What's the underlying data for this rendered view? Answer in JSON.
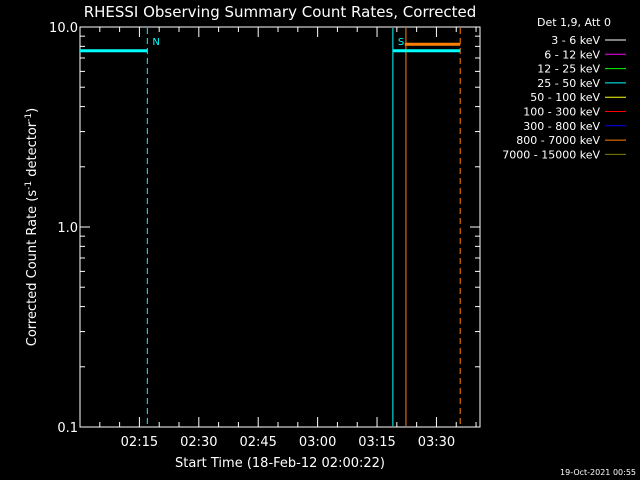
{
  "chart_data": {
    "type": "line",
    "title": "RHESSI Observing Summary Count Rates, Corrected",
    "xlabel": "Start Time (18-Feb-12 02:00:22)",
    "ylabel_main": "Corrected Count Rate (s",
    "ylabel_sup1": "-1",
    "ylabel_mid": " detector",
    "ylabel_sup2": "-1",
    "ylabel_end": ")",
    "y_scale": "log",
    "ylim": [
      0.1,
      10.0
    ],
    "y_ticks": [
      {
        "value": 0.1,
        "label": "0.1"
      },
      {
        "value": 1.0,
        "label": "1.0"
      },
      {
        "value": 10.0,
        "label": "10.0"
      }
    ],
    "x_unit": "minutes since 02:00:22",
    "xlim": [
      0,
      101
    ],
    "x_ticks": [
      {
        "value": 15,
        "label": "02:15"
      },
      {
        "value": 30,
        "label": "02:30"
      },
      {
        "value": 45,
        "label": "02:45"
      },
      {
        "value": 60,
        "label": "03:00"
      },
      {
        "value": 75,
        "label": "03:15"
      },
      {
        "value": 90,
        "label": "03:30"
      }
    ],
    "legend": {
      "placement": "right",
      "header": "Det 1,9, Att 0",
      "entries": [
        {
          "label": "3 - 6 keV",
          "color": "#ffffff"
        },
        {
          "label": "6 - 12 keV",
          "color": "#ff00ff"
        },
        {
          "label": "12 - 25 keV",
          "color": "#00ff00"
        },
        {
          "label": "25 - 50 keV",
          "color": "#00ffff"
        },
        {
          "label": "50 - 100 keV",
          "color": "#ffff00"
        },
        {
          "label": "100 - 300 keV",
          "color": "#ff0000"
        },
        {
          "label": "300 - 800 keV",
          "color": "#0000ff"
        },
        {
          "label": "800 - 7000 keV",
          "color": "#ff8000"
        },
        {
          "label": "7000 - 15000 keV",
          "color": "#808000"
        }
      ]
    },
    "series": [
      {
        "color": "#00ffff",
        "segments": [
          {
            "x": [
              0,
              17
            ],
            "y": [
              7.6,
              7.6
            ]
          },
          {
            "x": [
              79,
              96
            ],
            "y": [
              7.6,
              7.6
            ]
          }
        ]
      },
      {
        "color": "#ff8000",
        "segments": [
          {
            "x": [
              82,
              96
            ],
            "y": [
              8.2,
              8.2
            ]
          }
        ]
      }
    ],
    "vertical_markers": [
      {
        "x": 17,
        "color": "#00ffff",
        "style": "dashed",
        "label": "N"
      },
      {
        "x": 79,
        "color": "#00ffff",
        "style": "solid",
        "label": "S"
      },
      {
        "x": 82.3,
        "color": "#ff8000",
        "style": "solid",
        "label": ""
      },
      {
        "x": 96,
        "color": "#ff8000",
        "style": "dashed",
        "label": ""
      }
    ],
    "footer_date": "19-Oct-2021 00:55"
  }
}
